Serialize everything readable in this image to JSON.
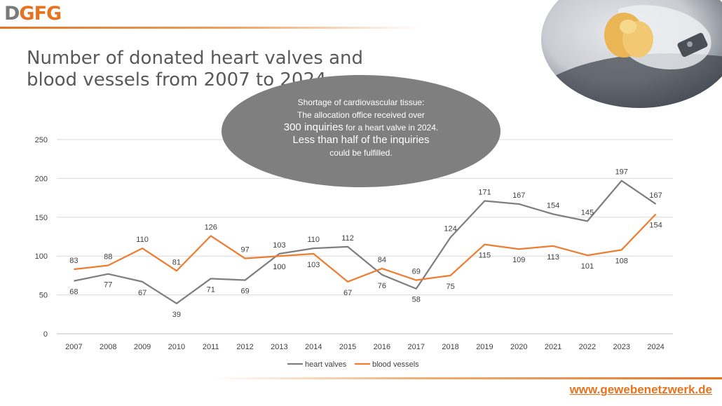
{
  "logo": {
    "part1": "D",
    "part2": "GFG"
  },
  "title": "Number of donated heart valves and blood vessels from 2007 to 2024",
  "bubble": {
    "line1": "Shortage of cardiovascular tissue:",
    "line2": "The allocation office received over",
    "line3_big": "300 inquiries",
    "line3_rest": " for a heart valve in 2024.",
    "line4_big": "Less than half of the inquiries",
    "line5": "could be fulfilled."
  },
  "footer_url": "www.gewebenetzwerk.de",
  "colors": {
    "heart_valves": "#7f7f7f",
    "blood_vessels": "#ed7d31",
    "accent": "#e8731e",
    "grid": "#d9d9d9"
  },
  "chart_data": {
    "type": "line",
    "categories": [
      "2007",
      "2008",
      "2009",
      "2010",
      "2011",
      "2012",
      "2013",
      "2014",
      "2015",
      "2016",
      "2017",
      "2018",
      "2019",
      "2020",
      "2021",
      "2022",
      "2023",
      "2024"
    ],
    "series": [
      {
        "name": "heart valves",
        "values": [
          68,
          77,
          67,
          39,
          71,
          69,
          103,
          110,
          112,
          76,
          58,
          124,
          171,
          167,
          154,
          145,
          197,
          167
        ]
      },
      {
        "name": "blood vessels",
        "values": [
          83,
          88,
          110,
          81,
          126,
          97,
          100,
          103,
          67,
          84,
          69,
          75,
          115,
          109,
          113,
          101,
          108,
          154
        ]
      }
    ],
    "ylim": [
      0,
      250
    ],
    "yticks": [
      0,
      50,
      100,
      150,
      200,
      250
    ],
    "grid": true,
    "legend": "bottom"
  }
}
